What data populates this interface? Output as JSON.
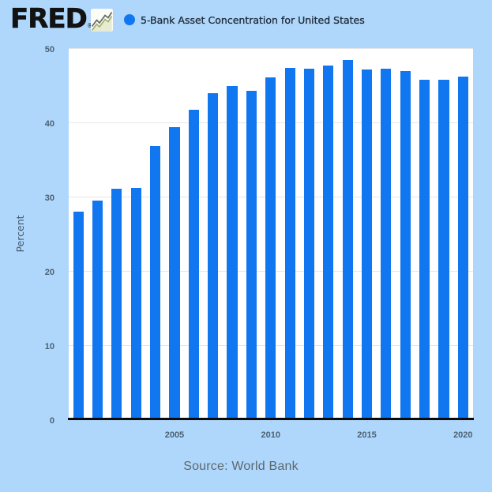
{
  "header": {
    "logo_text": "FRED",
    "logo_registered_mark": "®",
    "series_title": "5-Bank Asset Concentration for United States"
  },
  "chart_data": {
    "type": "bar",
    "title": "5-Bank Asset Concentration for United States",
    "categories": [
      2000,
      2001,
      2002,
      2003,
      2004,
      2005,
      2006,
      2007,
      2008,
      2009,
      2010,
      2011,
      2012,
      2013,
      2014,
      2015,
      2016,
      2017,
      2018,
      2019,
      2020
    ],
    "values": [
      28.0,
      29.5,
      31.0,
      31.1,
      36.8,
      39.3,
      41.7,
      43.9,
      44.9,
      44.2,
      46.1,
      47.3,
      47.2,
      47.7,
      48.4,
      47.1,
      47.2,
      46.9,
      45.7,
      45.7,
      46.2
    ],
    "xlabel": "",
    "ylabel": "Percent",
    "ylim": [
      0,
      50
    ],
    "yticks": [
      0,
      10,
      20,
      30,
      40,
      50
    ],
    "xticks": [
      2005,
      2010,
      2015,
      2020
    ],
    "grid": true,
    "legend_position": "top",
    "bar_color": "#1077f0",
    "background_color": "#aed7fb",
    "plot_background_color": "#ffffff"
  },
  "footer": {
    "source_label": "Source: World Bank"
  }
}
